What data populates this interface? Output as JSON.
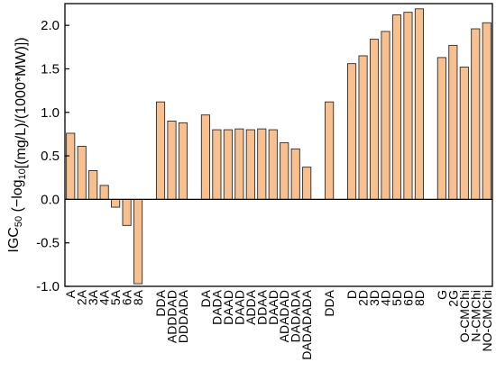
{
  "chart_data": {
    "type": "bar",
    "ylabel": "IGC50 (−log10[(mg/L)/(1000*MW)])",
    "ylabel_parts": {
      "main": "IGC",
      "sub1": "50",
      "mid": " (−log",
      "sub2": "10",
      "tail": "[(mg/L)/(1000*MW)])"
    },
    "ylim": [
      -1.0,
      2.25
    ],
    "yticks": [
      "-1.0",
      "-0.5",
      "0.0",
      "0.5",
      "1.0",
      "1.5",
      "2.0"
    ],
    "ytick_values": [
      -1.0,
      -0.5,
      0.0,
      0.5,
      1.0,
      1.5,
      2.0
    ],
    "grid": false,
    "bar_color": "#f9c08f",
    "bar_edge_color": "#2b2b2b",
    "categories": [
      "A",
      "2A",
      "3A",
      "4A",
      "5A",
      "6A",
      "8A",
      "",
      "DDA",
      "ADDDAD",
      "DDDADA",
      "",
      "DA",
      "DADA",
      "DAAD",
      "DAAD",
      "ADDA",
      "DDAA",
      "DAAD",
      "ADADAD",
      "DADADA",
      "DADADADA",
      "",
      "DDA",
      "",
      "D",
      "2D",
      "3D",
      "4D",
      "5D",
      "6D",
      "8D",
      "",
      "G",
      "2G",
      "O-CMChi",
      "N-CMChi",
      "NO-CMChi"
    ],
    "values": [
      0.76,
      0.61,
      0.33,
      0.16,
      -0.09,
      -0.3,
      -0.97,
      null,
      1.12,
      0.9,
      0.88,
      null,
      0.97,
      0.8,
      0.8,
      0.81,
      0.8,
      0.81,
      0.8,
      0.65,
      0.58,
      0.37,
      null,
      1.12,
      null,
      1.56,
      1.65,
      1.84,
      1.93,
      2.12,
      2.15,
      2.19,
      null,
      1.63,
      1.77,
      1.52,
      1.96,
      2.03
    ]
  }
}
